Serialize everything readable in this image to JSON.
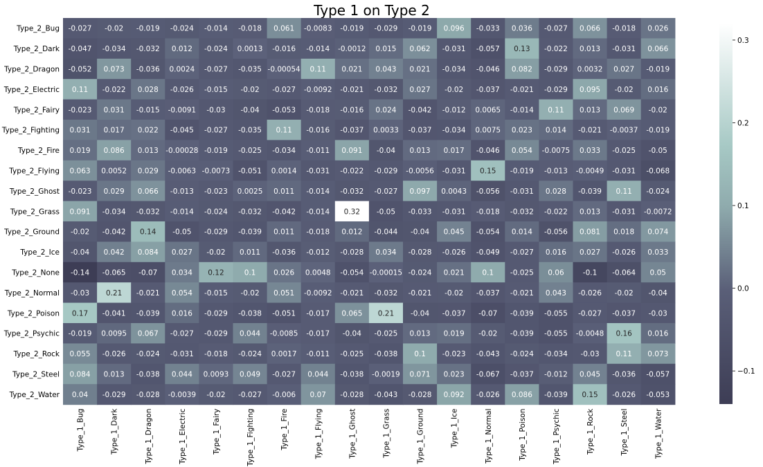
{
  "chart_data": {
    "type": "heatmap",
    "title": "Type 1 on Type 2",
    "x_categories": [
      "Type_1_Bug",
      "Type_1_Dark",
      "Type_1_Dragon",
      "Type_1_Electric",
      "Type_1_Fairy",
      "Type_1_Fighting",
      "Type_1_Fire",
      "Type_1_Flying",
      "Type_1_Ghost",
      "Type_1_Grass",
      "Type_1_Ground",
      "Type_1_Ice",
      "Type_1_Normal",
      "Type_1_Poison",
      "Type_1_Psychic",
      "Type_1_Rock",
      "Type_1_Steel",
      "Type_1_Water"
    ],
    "y_categories": [
      "Type_2_Bug",
      "Type_2_Dark",
      "Type_2_Dragon",
      "Type_2_Electric",
      "Type_2_Fairy",
      "Type_2_Fighting",
      "Type_2_Fire",
      "Type_2_Flying",
      "Type_2_Ghost",
      "Type_2_Grass",
      "Type_2_Ground",
      "Type_2_Ice",
      "Type_2_None",
      "Type_2_Normal",
      "Type_2_Poison",
      "Type_2_Psychic",
      "Type_2_Rock",
      "Type_2_Steel",
      "Type_2_Water"
    ],
    "value_labels": [
      [
        "-0.027",
        "-0.02",
        "-0.019",
        "-0.024",
        "-0.014",
        "-0.018",
        "0.061",
        "-0.0083",
        "-0.019",
        "-0.029",
        "-0.019",
        "0.096",
        "-0.033",
        "0.036",
        "-0.027",
        "0.066",
        "-0.018",
        "0.026"
      ],
      [
        "-0.047",
        "-0.034",
        "-0.032",
        "0.012",
        "-0.024",
        "0.0013",
        "-0.016",
        "-0.014",
        "-0.0012",
        "0.015",
        "0.062",
        "-0.031",
        "-0.057",
        "0.13",
        "-0.022",
        "0.013",
        "-0.031",
        "0.066"
      ],
      [
        "-0.052",
        "0.073",
        "-0.036",
        "0.0024",
        "-0.027",
        "-0.035",
        "-0.00054",
        "0.11",
        "0.021",
        "0.043",
        "0.021",
        "-0.034",
        "-0.046",
        "0.082",
        "-0.029",
        "0.0032",
        "0.027",
        "-0.019"
      ],
      [
        "0.11",
        "-0.022",
        "0.028",
        "-0.026",
        "-0.015",
        "-0.02",
        "-0.027",
        "-0.0092",
        "-0.021",
        "-0.032",
        "0.027",
        "-0.02",
        "-0.037",
        "-0.021",
        "-0.029",
        "0.095",
        "-0.02",
        "0.016"
      ],
      [
        "-0.023",
        "0.031",
        "-0.015",
        "-0.0091",
        "-0.03",
        "-0.04",
        "-0.053",
        "-0.018",
        "-0.016",
        "0.024",
        "-0.042",
        "-0.012",
        "0.0065",
        "-0.014",
        "0.11",
        "0.013",
        "0.069",
        "-0.02"
      ],
      [
        "0.031",
        "0.017",
        "0.022",
        "-0.045",
        "-0.027",
        "-0.035",
        "0.11",
        "-0.016",
        "-0.037",
        "0.0033",
        "-0.037",
        "-0.034",
        "0.0075",
        "0.023",
        "0.014",
        "-0.021",
        "-0.0037",
        "-0.019"
      ],
      [
        "0.019",
        "0.086",
        "0.013",
        "-0.00028",
        "-0.019",
        "-0.025",
        "-0.034",
        "-0.011",
        "0.091",
        "-0.04",
        "0.013",
        "0.017",
        "-0.046",
        "0.054",
        "-0.0075",
        "0.033",
        "-0.025",
        "-0.05"
      ],
      [
        "0.063",
        "0.0052",
        "0.029",
        "-0.0063",
        "-0.0073",
        "-0.051",
        "0.0014",
        "-0.031",
        "-0.022",
        "-0.029",
        "-0.0056",
        "-0.031",
        "0.15",
        "-0.019",
        "-0.013",
        "-0.0049",
        "-0.031",
        "-0.068"
      ],
      [
        "-0.023",
        "0.029",
        "0.066",
        "-0.013",
        "-0.023",
        "0.0025",
        "0.011",
        "-0.014",
        "-0.032",
        "-0.027",
        "0.097",
        "0.0043",
        "-0.056",
        "-0.031",
        "0.028",
        "-0.039",
        "0.11",
        "-0.024"
      ],
      [
        "0.091",
        "-0.034",
        "-0.032",
        "-0.014",
        "-0.024",
        "-0.032",
        "-0.042",
        "-0.014",
        "0.32",
        "-0.05",
        "-0.033",
        "-0.031",
        "-0.018",
        "-0.032",
        "-0.022",
        "0.013",
        "-0.031",
        "-0.0072"
      ],
      [
        "-0.02",
        "-0.042",
        "0.14",
        "-0.05",
        "-0.029",
        "-0.039",
        "0.011",
        "-0.018",
        "0.012",
        "-0.044",
        "-0.04",
        "0.045",
        "-0.054",
        "0.014",
        "-0.056",
        "0.081",
        "0.018",
        "0.074"
      ],
      [
        "-0.04",
        "0.042",
        "0.084",
        "0.027",
        "-0.02",
        "0.011",
        "-0.036",
        "-0.012",
        "-0.028",
        "0.034",
        "-0.028",
        "-0.026",
        "-0.049",
        "-0.027",
        "0.016",
        "0.027",
        "-0.026",
        "0.033"
      ],
      [
        "-0.14",
        "-0.065",
        "-0.07",
        "0.034",
        "0.12",
        "0.1",
        "0.026",
        "0.0048",
        "-0.054",
        "-0.00015",
        "-0.024",
        "0.021",
        "0.1",
        "-0.025",
        "0.06",
        "-0.1",
        "-0.064",
        "0.05"
      ],
      [
        "-0.03",
        "0.21",
        "-0.021",
        "0.054",
        "-0.015",
        "-0.02",
        "0.051",
        "-0.0092",
        "-0.021",
        "-0.032",
        "-0.021",
        "-0.02",
        "-0.037",
        "-0.021",
        "0.043",
        "-0.026",
        "-0.02",
        "-0.04"
      ],
      [
        "0.17",
        "-0.041",
        "-0.039",
        "0.016",
        "-0.029",
        "-0.038",
        "-0.051",
        "-0.017",
        "0.065",
        "0.21",
        "-0.04",
        "-0.037",
        "-0.07",
        "-0.039",
        "-0.055",
        "-0.027",
        "-0.037",
        "-0.03"
      ],
      [
        "-0.019",
        "0.0095",
        "0.067",
        "-0.027",
        "-0.029",
        "0.044",
        "-0.0085",
        "-0.017",
        "-0.04",
        "-0.025",
        "0.013",
        "0.019",
        "-0.02",
        "-0.039",
        "-0.055",
        "-0.0048",
        "0.16",
        "0.016"
      ],
      [
        "0.055",
        "-0.026",
        "-0.024",
        "-0.031",
        "-0.018",
        "-0.024",
        "0.0017",
        "-0.011",
        "-0.025",
        "-0.038",
        "0.1",
        "-0.023",
        "-0.043",
        "-0.024",
        "-0.034",
        "-0.03",
        "0.11",
        "0.073"
      ],
      [
        "0.084",
        "0.013",
        "-0.038",
        "0.044",
        "0.0093",
        "0.049",
        "-0.027",
        "0.044",
        "-0.038",
        "-0.0019",
        "0.071",
        "0.023",
        "-0.067",
        "-0.037",
        "-0.012",
        "0.045",
        "-0.036",
        "-0.057"
      ],
      [
        "0.04",
        "-0.029",
        "-0.028",
        "-0.0039",
        "-0.02",
        "-0.027",
        "-0.006",
        "0.07",
        "-0.028",
        "-0.043",
        "-0.028",
        "0.092",
        "-0.026",
        "0.086",
        "-0.039",
        "0.15",
        "-0.026",
        "-0.053"
      ]
    ],
    "color_range": [
      -0.14,
      0.32
    ],
    "colorbar_ticks": [
      {
        "value": 0.3,
        "label": "0.3"
      },
      {
        "value": 0.2,
        "label": "0.2"
      },
      {
        "value": 0.1,
        "label": "0.1"
      },
      {
        "value": 0.0,
        "label": "0.0"
      },
      {
        "value": -0.1,
        "label": "−0.1"
      }
    ],
    "colormap": [
      "#3d3d55",
      "#5a5f78",
      "#8fabad",
      "#a7c9c5",
      "#ffffff"
    ],
    "legend": "colorbar-right",
    "grid": false
  }
}
